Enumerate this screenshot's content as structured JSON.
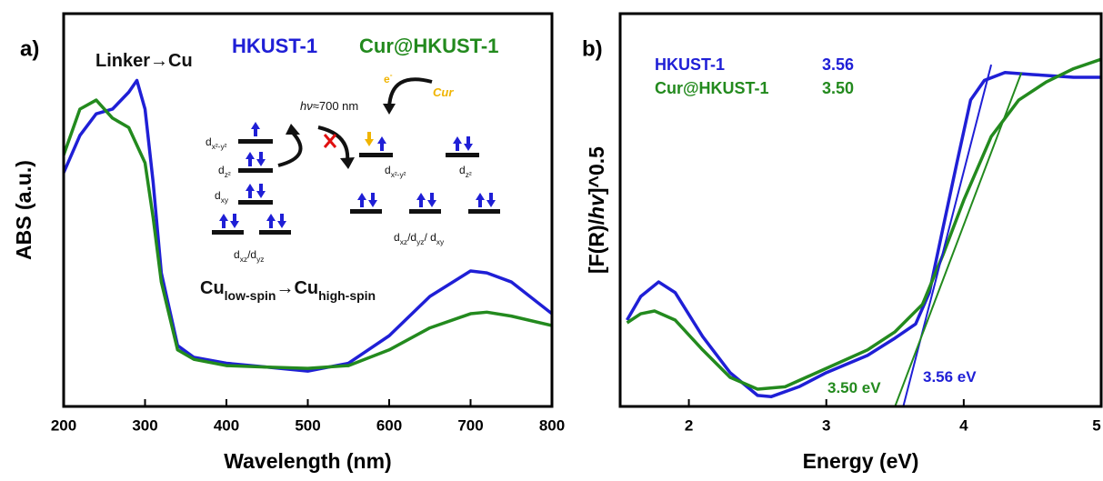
{
  "chart_data": [
    {
      "type": "line",
      "panel_label": "a)",
      "xlabel": "Wavelength (nm)",
      "ylabel": "ABS (a.u.)",
      "xlim": [
        200,
        800
      ],
      "ylim": [
        0,
        1
      ],
      "xticks": [
        200,
        300,
        400,
        500,
        600,
        700,
        800
      ],
      "series": [
        {
          "name": "HKUST-1",
          "color": "#1f1fd6",
          "x": [
            200,
            220,
            240,
            260,
            280,
            290,
            300,
            310,
            320,
            340,
            360,
            400,
            450,
            500,
            550,
            600,
            650,
            700,
            720,
            750,
            800
          ],
          "values": [
            0.595,
            0.69,
            0.745,
            0.757,
            0.8,
            0.83,
            0.757,
            0.57,
            0.34,
            0.155,
            0.125,
            0.11,
            0.1,
            0.09,
            0.11,
            0.18,
            0.28,
            0.345,
            0.34,
            0.317,
            0.236
          ]
        },
        {
          "name": "Cur@HKUST-1",
          "color": "#238a1e",
          "x": [
            200,
            220,
            240,
            260,
            280,
            300,
            310,
            320,
            340,
            360,
            400,
            450,
            500,
            550,
            600,
            650,
            700,
            720,
            750,
            800
          ],
          "values": [
            0.64,
            0.757,
            0.78,
            0.734,
            0.71,
            0.62,
            0.48,
            0.317,
            0.144,
            0.12,
            0.104,
            0.1,
            0.097,
            0.104,
            0.144,
            0.2,
            0.236,
            0.24,
            0.23,
            0.206
          ]
        }
      ],
      "annotations": [
        {
          "parts": [
            {
              "text": "Linker→Cu"
            }
          ]
        },
        {
          "parts": [
            {
              "text": "hν",
              "italic": true
            },
            {
              "text": "≈700 nm"
            }
          ]
        },
        {
          "parts": [
            {
              "text": "e"
            },
            {
              "text": "-",
              "sup": true
            }
          ],
          "color": "#f0b400"
        },
        {
          "parts": [
            {
              "text": "Cur",
              "italic": true
            }
          ],
          "color": "#f0b400"
        },
        {
          "parts": [
            {
              "text": "d"
            },
            {
              "text": "x²-y²",
              "sub": true
            }
          ]
        },
        {
          "parts": [
            {
              "text": "d"
            },
            {
              "text": "z²",
              "sub": true
            }
          ]
        },
        {
          "parts": [
            {
              "text": "d"
            },
            {
              "text": "xy",
              "sub": true
            }
          ]
        },
        {
          "parts": [
            {
              "text": "d"
            },
            {
              "text": "xz",
              "sub": true
            },
            {
              "text": "/d"
            },
            {
              "text": "yz",
              "sub": true
            }
          ]
        },
        {
          "parts": [
            {
              "text": "d"
            },
            {
              "text": "x²-y²",
              "sub": true
            }
          ]
        },
        {
          "parts": [
            {
              "text": "d"
            },
            {
              "text": "z²",
              "sub": true
            }
          ]
        },
        {
          "parts": [
            {
              "text": "d"
            },
            {
              "text": "xz",
              "sub": true
            },
            {
              "text": "/d"
            },
            {
              "text": "yz",
              "sub": true
            },
            {
              "text": "/ d"
            },
            {
              "text": "xy",
              "sub": true
            }
          ]
        },
        {
          "parts": [
            {
              "text": "Cu"
            },
            {
              "text": "low-spin",
              "sub": true
            },
            {
              "text": "→Cu"
            },
            {
              "text": "high-spin",
              "sub": true
            }
          ]
        }
      ]
    },
    {
      "type": "line",
      "panel_label": "b)",
      "xlabel": "Energy (eV)",
      "ylabel_parts": [
        {
          "text": "[F(R)/"
        },
        {
          "text": "hv",
          "italic": true
        },
        {
          "text": "]^0.5"
        }
      ],
      "xlim": [
        1.5,
        5
      ],
      "ylim": [
        0,
        1
      ],
      "xticks": [
        2,
        3,
        4,
        5
      ],
      "series": [
        {
          "name": "HKUST-1",
          "color": "#1f1fd6",
          "gap_label": "3.56",
          "x": [
            1.55,
            1.65,
            1.78,
            1.9,
            2.1,
            2.3,
            2.5,
            2.6,
            2.8,
            3.0,
            3.3,
            3.5,
            3.65,
            3.75,
            3.85,
            3.95,
            4.05,
            4.15,
            4.3,
            4.5,
            4.8,
            5.0
          ],
          "values": [
            0.22,
            0.28,
            0.317,
            0.29,
            0.178,
            0.086,
            0.028,
            0.025,
            0.05,
            0.086,
            0.13,
            0.174,
            0.21,
            0.29,
            0.456,
            0.62,
            0.78,
            0.83,
            0.85,
            0.845,
            0.838,
            0.838
          ]
        },
        {
          "name": "Cur@HKUST-1",
          "color": "#238a1e",
          "gap_label": "3.50",
          "x": [
            1.55,
            1.65,
            1.75,
            1.9,
            2.1,
            2.3,
            2.5,
            2.7,
            3.0,
            3.3,
            3.5,
            3.7,
            3.85,
            4.0,
            4.2,
            4.4,
            4.6,
            4.8,
            5.0
          ],
          "values": [
            0.213,
            0.236,
            0.243,
            0.22,
            0.144,
            0.074,
            0.044,
            0.05,
            0.097,
            0.144,
            0.19,
            0.26,
            0.387,
            0.525,
            0.687,
            0.78,
            0.826,
            0.86,
            0.884
          ]
        }
      ],
      "fit_lines": [
        {
          "color": "#1f1fd6",
          "x": [
            3.56,
            4.2
          ],
          "values": [
            0,
            0.87
          ]
        },
        {
          "color": "#238a1e",
          "x": [
            3.5,
            4.42
          ],
          "values": [
            0,
            0.85
          ]
        }
      ],
      "annotations": [
        {
          "parts": [
            {
              "text": "3.50 eV"
            }
          ],
          "color": "#238a1e"
        },
        {
          "parts": [
            {
              "text": "3.56 eV"
            }
          ],
          "color": "#1f1fd6"
        }
      ]
    }
  ]
}
